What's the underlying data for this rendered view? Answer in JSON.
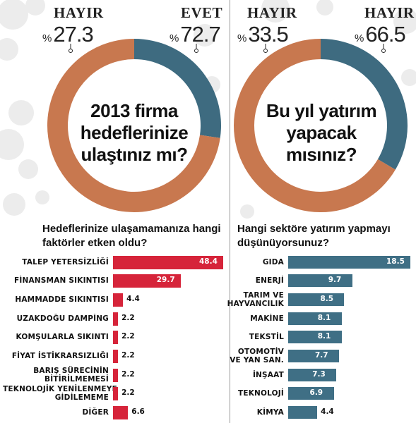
{
  "colors": {
    "blue": "#3e6b80",
    "orange": "#c8784f",
    "red": "#d6243a",
    "steel": "#3f6f85"
  },
  "left": {
    "pie": {
      "no_label": "HAYIR",
      "no_value": "27.3",
      "yes_label": "EVET",
      "yes_value": "72.7",
      "percent_sign": "%"
    },
    "question": [
      "2013 firma",
      "hedeflerinize",
      "ulaştınız mı?"
    ],
    "subtitle": [
      "Hedeflerinize ulaşamamanıza hangi",
      "faktörler etken oldu?"
    ]
  },
  "right": {
    "pie": {
      "no_label": "HAYIR",
      "no_value": "33.5",
      "yes_label": "HAYIR",
      "yes_value": "66.5",
      "percent_sign": "%"
    },
    "question": [
      "Bu yıl yatırım",
      "yapacak",
      "mısınız?"
    ],
    "subtitle": [
      "Hangi sektöre yatırım yapmayı",
      "düşünüyorsunuz?"
    ]
  },
  "chart_data": [
    {
      "type": "pie",
      "title": "2013 firma hedeflerinize ulaştınız mı?",
      "categories": [
        "HAYIR",
        "EVET"
      ],
      "values": [
        27.3,
        72.7
      ]
    },
    {
      "type": "pie",
      "title": "Bu yıl yatırım yapacak mısınız?",
      "categories": [
        "HAYIR",
        "HAYIR"
      ],
      "values": [
        33.5,
        66.5
      ]
    },
    {
      "type": "bar",
      "title": "Hedeflerinize ulaşamamanıza hangi faktörler etken oldu?",
      "categories": [
        "TALEP YETERSİZLİĞİ",
        "FİNANSMAN SIKINTISI",
        "HAMMADDE SIKINTISI",
        "UZAKDOĞU DAMPİNG",
        "KOMŞULARLA SIKINTI",
        "FİYAT İSTİKRARSIZLIĞI",
        "BARIŞ SÜRECİNİN BİTİRİLMEMESİ",
        "TEKNOLOJİK YENİLENMEYE GİDİLEMEME",
        "DİĞER"
      ],
      "values": [
        48.4,
        29.7,
        4.4,
        2.2,
        2.2,
        2.2,
        2.2,
        2.2,
        6.6
      ],
      "value_labels": [
        "48.4",
        "29.7",
        "4.4",
        "2.2",
        "2.2",
        "2.2",
        "2.2",
        "2.2",
        "6.6"
      ]
    },
    {
      "type": "bar",
      "title": "Hangi sektöre yatırım yapmayı düşünüyorsunuz?",
      "categories": [
        "GIDA",
        "ENERJİ",
        "TARIM VE HAYVANCILIK",
        "MAKİNE",
        "TEKSTİL",
        "OTOMOTİV VE YAN SAN.",
        "İNŞAAT",
        "TEKNOLOJİ",
        "KİMYA"
      ],
      "values": [
        18.5,
        9.7,
        8.5,
        8.1,
        8.1,
        7.7,
        7.3,
        6.9,
        4.4
      ],
      "value_labels": [
        "18.5",
        "9.7",
        "8.5",
        "8.1",
        "8.1",
        "7.7",
        "7.3",
        "6.9",
        "4.4"
      ]
    }
  ]
}
